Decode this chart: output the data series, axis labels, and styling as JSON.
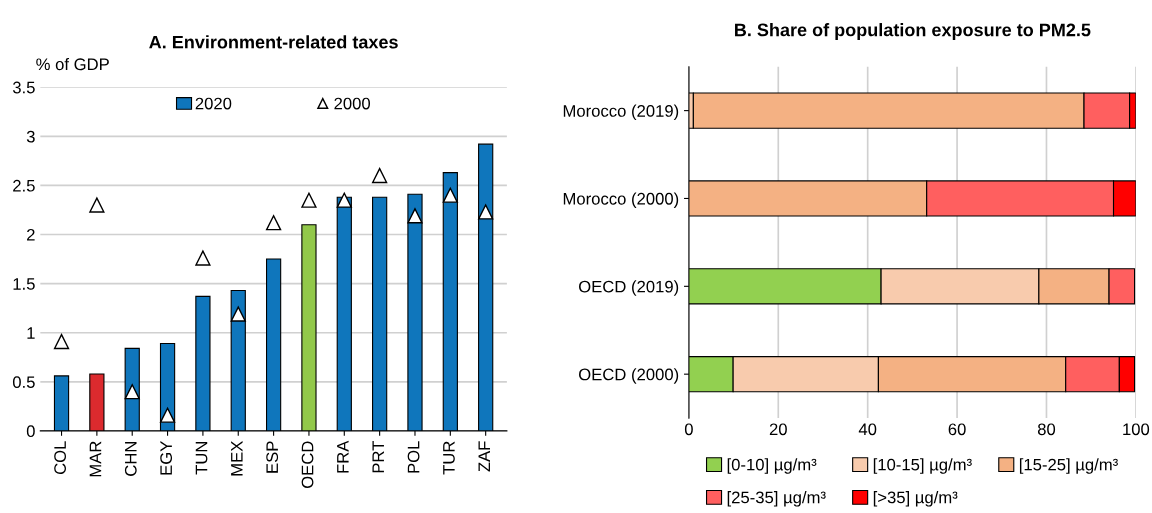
{
  "chart_data": [
    {
      "type": "bar",
      "title": "A. Environment-related taxes",
      "ylabel": "% of GDP",
      "categories": [
        "COL",
        "MAR",
        "CHN",
        "EGY",
        "TUN",
        "MEX",
        "ESP",
        "OECD",
        "FRA",
        "PRT",
        "POL",
        "TUR",
        "ZAF"
      ],
      "series": [
        {
          "name": "2020",
          "type": "bar",
          "color": "#0f76bc",
          "colors": [
            "#0f76bc",
            "#dc2a2e",
            "#0f76bc",
            "#0f76bc",
            "#0f76bc",
            "#0f76bc",
            "#0f76bc",
            "#92c84a",
            "#0f76bc",
            "#0f76bc",
            "#0f76bc",
            "#0f76bc",
            "#0f76bc"
          ],
          "values": [
            0.56,
            0.58,
            0.84,
            0.89,
            1.37,
            1.43,
            1.75,
            2.1,
            2.38,
            2.38,
            2.41,
            2.63,
            2.92
          ]
        },
        {
          "name": "2000",
          "type": "scatter",
          "marker": "triangle",
          "color": "#ffffff",
          "values": [
            0.91,
            2.3,
            0.4,
            0.16,
            1.76,
            1.19,
            2.12,
            2.35,
            2.35,
            2.6,
            2.19,
            2.4,
            2.23
          ]
        }
      ],
      "ylim": [
        0,
        3.5
      ],
      "yticks": [
        0,
        0.5,
        1,
        1.5,
        2,
        2.5,
        3,
        3.5
      ],
      "grid": "y",
      "legend": "top"
    },
    {
      "type": "bar",
      "title": "B. Share of population exposure to PM2.5",
      "orientation": "horizontal",
      "stacked": true,
      "categories": [
        "Morocco (2019)",
        "Morocco (2000)",
        "OECD (2019)",
        "OECD (2000)"
      ],
      "series": [
        {
          "name": "[0-10] µg/m³",
          "color": "#92d050",
          "values": [
            0,
            0,
            43.0,
            9.9
          ]
        },
        {
          "name": "[10-15] µg/m³",
          "color": "#f8cbad",
          "values": [
            1.0,
            0,
            35.3,
            32.5
          ]
        },
        {
          "name": "[15-25] µg/m³",
          "color": "#f4b183",
          "values": [
            87.4,
            53.2,
            15.7,
            41.9
          ]
        },
        {
          "name": "[25-35] µg/m³",
          "color": "#ff5f5f",
          "values": [
            10.2,
            41.8,
            5.7,
            12.0
          ]
        },
        {
          "name": "[>35] µg/m³",
          "color": "#ff0000",
          "values": [
            1.4,
            5.0,
            0,
            3.4
          ]
        }
      ],
      "xlim": [
        0,
        100
      ],
      "xticks": [
        0,
        20,
        40,
        60,
        80,
        100
      ],
      "grid": "x",
      "legend": "bottom"
    }
  ]
}
